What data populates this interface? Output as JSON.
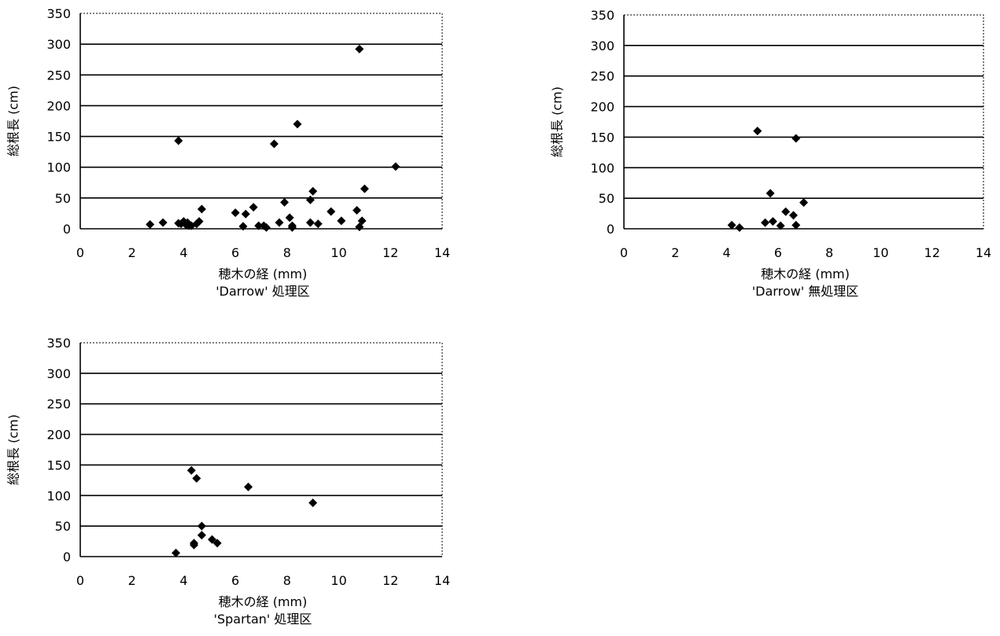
{
  "chart_data": [
    {
      "type": "scatter",
      "xlabel": "穂木の経 (mm)",
      "subtitle": "'Darrow' 処理区",
      "ylabel": "総根長 (cm)",
      "xlim": [
        0,
        14
      ],
      "ylim": [
        0,
        350
      ],
      "xticks": [
        0,
        2,
        4,
        6,
        8,
        10,
        12,
        14
      ],
      "yticks": [
        0,
        50,
        100,
        150,
        200,
        250,
        300,
        350
      ],
      "grid": "horizontal",
      "marker": "diamond",
      "x": [
        2.7,
        3.2,
        3.8,
        3.9,
        4.0,
        4.1,
        4.15,
        4.2,
        4.3,
        4.5,
        4.6,
        4.7,
        3.8,
        6.0,
        6.3,
        6.4,
        6.7,
        6.9,
        7.1,
        7.2,
        7.5,
        7.7,
        7.9,
        8.1,
        8.2,
        8.2,
        8.4,
        8.9,
        9.0,
        8.9,
        9.2,
        9.7,
        10.1,
        10.7,
        10.8,
        10.9,
        11.0,
        10.8,
        12.2
      ],
      "y": [
        7,
        10,
        9,
        8,
        12,
        6,
        10,
        5,
        5,
        8,
        12,
        32,
        143,
        26,
        4,
        24,
        35,
        5,
        5,
        2,
        138,
        10,
        43,
        18,
        5,
        2,
        170,
        10,
        61,
        47,
        8,
        28,
        13,
        30,
        3,
        13,
        65,
        292,
        101
      ]
    },
    {
      "type": "scatter",
      "xlabel": "穂木の経 (mm)",
      "subtitle": "'Darrow' 無処理区",
      "ylabel": "総根長 (cm)",
      "xlim": [
        0,
        14
      ],
      "ylim": [
        0,
        350
      ],
      "xticks": [
        0,
        2,
        4,
        6,
        8,
        10,
        12,
        14
      ],
      "yticks": [
        0,
        50,
        100,
        150,
        200,
        250,
        300,
        350
      ],
      "grid": "horizontal",
      "marker": "diamond",
      "x": [
        4.2,
        4.5,
        5.2,
        5.5,
        5.7,
        5.8,
        6.1,
        6.3,
        6.6,
        6.7,
        6.7,
        7.0
      ],
      "y": [
        6,
        2,
        160,
        10,
        58,
        12,
        5,
        28,
        22,
        6,
        148,
        43
      ]
    },
    {
      "type": "scatter",
      "xlabel": "穂木の経 (mm)",
      "subtitle": "'Spartan' 処理区",
      "ylabel": "総根長 (cm)",
      "xlim": [
        0,
        14
      ],
      "ylim": [
        0,
        350
      ],
      "xticks": [
        0,
        2,
        4,
        6,
        8,
        10,
        12,
        14
      ],
      "yticks": [
        0,
        50,
        100,
        150,
        200,
        250,
        300,
        350
      ],
      "grid": "horizontal",
      "marker": "diamond",
      "x": [
        3.7,
        4.3,
        4.4,
        4.4,
        4.5,
        4.7,
        4.7,
        5.1,
        5.3,
        6.5,
        9.0
      ],
      "y": [
        6,
        141,
        22,
        19,
        128,
        35,
        50,
        28,
        22,
        114,
        88
      ]
    }
  ]
}
